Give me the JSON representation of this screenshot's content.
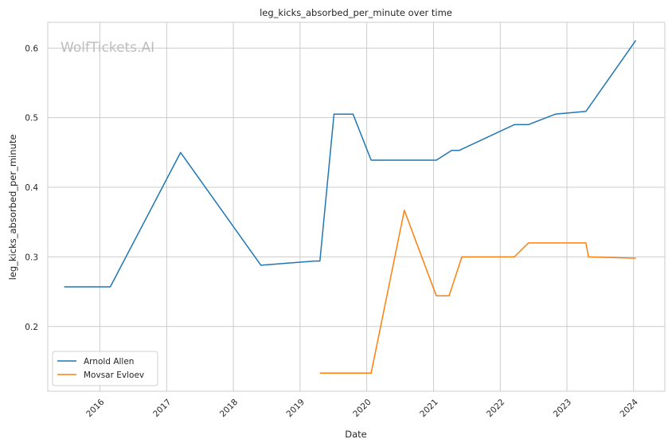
{
  "chart_data": {
    "type": "line",
    "title": "leg_kicks_absorbed_per_minute over time",
    "xlabel": "Date",
    "ylabel": "leg_kicks_absorbed_per_minute",
    "watermark": "WolfTickets.AI",
    "x_ticks": [
      "2016",
      "2017",
      "2018",
      "2019",
      "2020",
      "2021",
      "2022",
      "2023",
      "2024"
    ],
    "y_ticks": [
      "0.2",
      "0.3",
      "0.4",
      "0.5",
      "0.6"
    ],
    "xlim": [
      "2015-03-22",
      "2024-06-20"
    ],
    "ylim": [
      0.107,
      0.637
    ],
    "grid": true,
    "legend_position": "lower-left",
    "series": [
      {
        "name": "Arnold Allen",
        "color": "#1f77b4",
        "points": [
          [
            "2015-06-20",
            0.257
          ],
          [
            "2016-02-27",
            0.257
          ],
          [
            "2017-03-18",
            0.45
          ],
          [
            "2018-06-01",
            0.288
          ],
          [
            "2019-03-23",
            0.294
          ],
          [
            "2019-04-20",
            0.294
          ],
          [
            "2019-07-06",
            0.505
          ],
          [
            "2019-10-18",
            0.505
          ],
          [
            "2020-01-25",
            0.439
          ],
          [
            "2021-01-16",
            0.439
          ],
          [
            "2021-04-10",
            0.453
          ],
          [
            "2021-05-22",
            0.453
          ],
          [
            "2022-03-19",
            0.49
          ],
          [
            "2022-06-04",
            0.49
          ],
          [
            "2022-10-29",
            0.505
          ],
          [
            "2023-04-15",
            0.509
          ],
          [
            "2024-01-13",
            0.611
          ]
        ]
      },
      {
        "name": "Movsar Evloev",
        "color": "#ff7f0e",
        "points": [
          [
            "2019-04-20",
            0.133
          ],
          [
            "2020-01-25",
            0.133
          ],
          [
            "2020-07-25",
            0.367
          ],
          [
            "2021-01-16",
            0.244
          ],
          [
            "2021-03-27",
            0.244
          ],
          [
            "2021-06-05",
            0.3
          ],
          [
            "2022-03-19",
            0.3
          ],
          [
            "2022-06-04",
            0.32
          ],
          [
            "2023-04-15",
            0.32
          ],
          [
            "2023-04-29",
            0.3
          ],
          [
            "2024-01-13",
            0.298
          ]
        ]
      }
    ]
  }
}
